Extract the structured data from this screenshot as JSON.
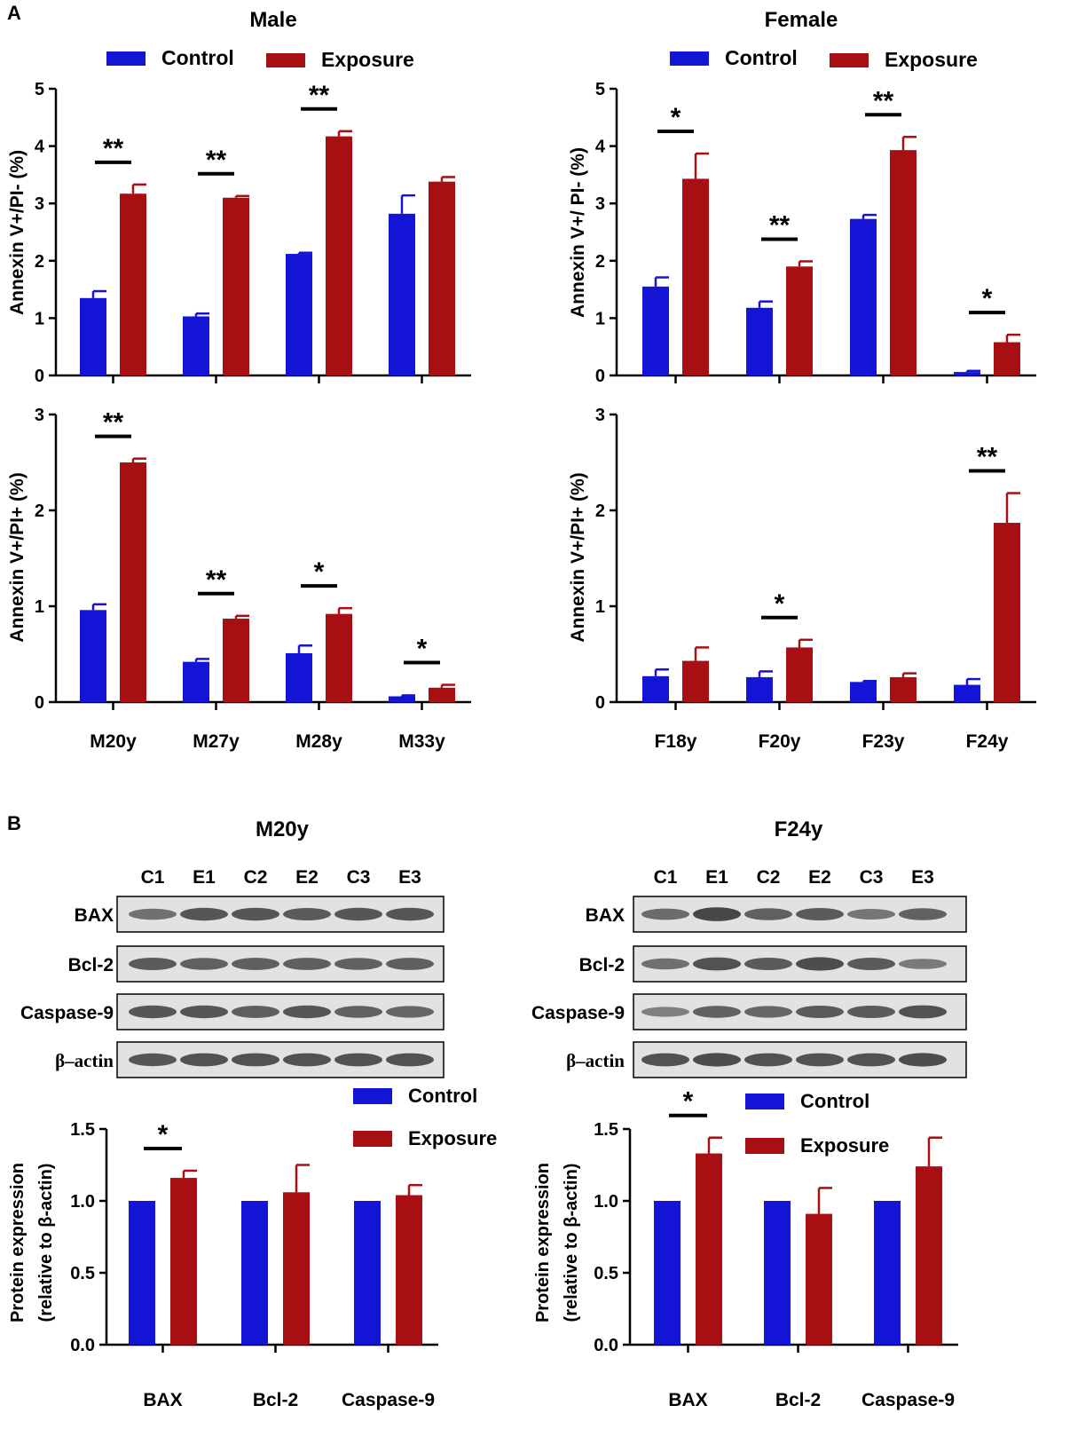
{
  "panel_labels": {
    "a": "A",
    "b": "B"
  },
  "colors": {
    "control": "#1414d6",
    "exposure": "#a80f13",
    "axis": "#000000",
    "band": "#3a3a3a",
    "blot_bg": "#e2e2e2"
  },
  "legend": {
    "control": "Control",
    "exposure": "Exposure"
  },
  "chart_data": [
    {
      "id": "male-pi-neg",
      "type": "bar",
      "title": "Male",
      "ylabel": "Annexin V+/PI- (%)",
      "ylim": [
        0,
        5
      ],
      "yticks": [
        "0",
        "1",
        "2",
        "3",
        "4",
        "5"
      ],
      "categories": [
        "M20y",
        "M27y",
        "M28y",
        "M33y"
      ],
      "show_xlabels": false,
      "series": [
        {
          "name": "Control",
          "values": [
            1.35,
            1.03,
            2.12,
            2.82
          ],
          "errors": [
            0.12,
            0.05,
            0.02,
            0.32
          ]
        },
        {
          "name": "Exposure",
          "values": [
            3.17,
            3.1,
            4.17,
            3.38
          ],
          "errors": [
            0.16,
            0.03,
            0.09,
            0.08
          ]
        }
      ],
      "significance": [
        "**",
        "**",
        "**",
        ""
      ]
    },
    {
      "id": "female-pi-neg",
      "type": "bar",
      "title": "Female",
      "ylabel": "Annexin V+/ PI- (%)",
      "ylim": [
        0,
        5
      ],
      "yticks": [
        "0",
        "1",
        "2",
        "3",
        "4",
        "5"
      ],
      "categories": [
        "F18y",
        "F20y",
        "F23y",
        "F24y"
      ],
      "show_xlabels": false,
      "series": [
        {
          "name": "Control",
          "values": [
            1.55,
            1.18,
            2.73,
            0.06
          ],
          "errors": [
            0.16,
            0.11,
            0.07,
            0.02
          ]
        },
        {
          "name": "Exposure",
          "values": [
            3.43,
            1.9,
            3.93,
            0.58
          ],
          "errors": [
            0.44,
            0.09,
            0.23,
            0.13
          ]
        }
      ],
      "significance": [
        "*",
        "**",
        "**",
        "*"
      ]
    },
    {
      "id": "male-pi-pos",
      "type": "bar",
      "title": "",
      "ylabel": "Annexin V+/PI+ (%)",
      "ylim": [
        0,
        3
      ],
      "yticks": [
        "0",
        "1",
        "2",
        "3"
      ],
      "categories": [
        "M20y",
        "M27y",
        "M28y",
        "M33y"
      ],
      "show_xlabels": true,
      "series": [
        {
          "name": "Control",
          "values": [
            0.96,
            0.42,
            0.51,
            0.06
          ],
          "errors": [
            0.06,
            0.03,
            0.08,
            0.01
          ]
        },
        {
          "name": "Exposure",
          "values": [
            2.5,
            0.87,
            0.92,
            0.15
          ],
          "errors": [
            0.04,
            0.03,
            0.06,
            0.03
          ]
        }
      ],
      "significance": [
        "**",
        "**",
        "*",
        "*"
      ]
    },
    {
      "id": "female-pi-pos",
      "type": "bar",
      "title": "",
      "ylabel": "Annexin V+/PI+ (%)",
      "ylim": [
        0,
        3
      ],
      "yticks": [
        "0",
        "1",
        "2",
        "3"
      ],
      "categories": [
        "F18y",
        "F20y",
        "F23y",
        "F24y"
      ],
      "show_xlabels": true,
      "series": [
        {
          "name": "Control",
          "values": [
            0.27,
            0.26,
            0.21,
            0.18
          ],
          "errors": [
            0.07,
            0.06,
            0.01,
            0.06
          ]
        },
        {
          "name": "Exposure",
          "values": [
            0.43,
            0.57,
            0.26,
            1.87
          ],
          "errors": [
            0.14,
            0.08,
            0.04,
            0.31
          ]
        }
      ],
      "significance": [
        "",
        "*",
        "",
        "**"
      ]
    },
    {
      "id": "m20y-protein",
      "type": "bar",
      "title": "",
      "ylabel_lines": [
        "Protein expression",
        "(relative to  β-actin)"
      ],
      "ylim": [
        0,
        1.5
      ],
      "yticks": [
        "0.0",
        "0.5",
        "1.0",
        "1.5"
      ],
      "categories": [
        "BAX",
        "Bcl-2",
        "Caspase-9"
      ],
      "show_xlabels": true,
      "series": [
        {
          "name": "Control",
          "values": [
            1.0,
            1.0,
            1.0
          ],
          "errors": [
            0,
            0,
            0
          ]
        },
        {
          "name": "Exposure",
          "values": [
            1.16,
            1.06,
            1.04
          ],
          "errors": [
            0.05,
            0.19,
            0.07
          ]
        }
      ],
      "significance": [
        "*",
        "",
        ""
      ]
    },
    {
      "id": "f24y-protein",
      "type": "bar",
      "title": "",
      "ylabel_lines": [
        "Protein expression",
        "(relative to  β-actin)"
      ],
      "ylim": [
        0,
        1.5
      ],
      "yticks": [
        "0.0",
        "0.5",
        "1.0",
        "1.5"
      ],
      "categories": [
        "BAX",
        "Bcl-2",
        "Caspase-9"
      ],
      "show_xlabels": true,
      "series": [
        {
          "name": "Control",
          "values": [
            1.0,
            1.0,
            1.0
          ],
          "errors": [
            0,
            0,
            0
          ]
        },
        {
          "name": "Exposure",
          "values": [
            1.33,
            0.91,
            1.24
          ],
          "errors": [
            0.11,
            0.18,
            0.2
          ]
        }
      ],
      "significance": [
        "*",
        "",
        ""
      ]
    }
  ],
  "blots": [
    {
      "id": "m20y-blot",
      "title": "M20y",
      "lanes": [
        "C1",
        "E1",
        "C2",
        "E2",
        "C3",
        "E3"
      ],
      "rows": [
        {
          "label": "BAX",
          "intensity": [
            0.55,
            0.8,
            0.8,
            0.75,
            0.8,
            0.8
          ]
        },
        {
          "label": "Bcl-2",
          "intensity": [
            0.75,
            0.7,
            0.72,
            0.72,
            0.7,
            0.72
          ]
        },
        {
          "label": "Caspase-9",
          "intensity": [
            0.8,
            0.8,
            0.72,
            0.8,
            0.7,
            0.65
          ]
        },
        {
          "label": "β–actin",
          "intensity": [
            0.8,
            0.85,
            0.85,
            0.85,
            0.85,
            0.85
          ]
        }
      ]
    },
    {
      "id": "f24y-blot",
      "title": "F24y",
      "lanes": [
        "C1",
        "E1",
        "C2",
        "E2",
        "C3",
        "E3"
      ],
      "rows": [
        {
          "label": "BAX",
          "intensity": [
            0.6,
            0.95,
            0.7,
            0.75,
            0.5,
            0.7
          ]
        },
        {
          "label": "Bcl-2",
          "intensity": [
            0.55,
            0.85,
            0.75,
            0.9,
            0.75,
            0.45
          ]
        },
        {
          "label": "Caspase-9",
          "intensity": [
            0.4,
            0.7,
            0.65,
            0.75,
            0.75,
            0.85
          ]
        },
        {
          "label": "β–actin",
          "intensity": [
            0.85,
            0.9,
            0.85,
            0.85,
            0.85,
            0.9
          ]
        }
      ]
    }
  ]
}
